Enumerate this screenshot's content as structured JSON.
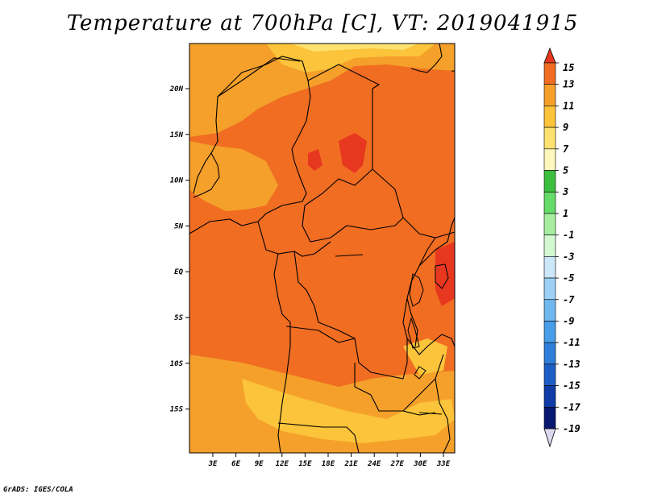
{
  "title": "Temperature at 700hPa [C], VT: 2019041915",
  "credit": "GrADS: IGES/COLA",
  "map": {
    "lon_labels": [
      "3E",
      "6E",
      "9E",
      "12E",
      "15E",
      "18E",
      "21E",
      "24E",
      "27E",
      "30E",
      "33E"
    ],
    "lat_labels": [
      "20N",
      "15N",
      "10N",
      "5N",
      "EQ",
      "5S",
      "10S",
      "15S"
    ]
  },
  "colorbar": {
    "levels": [
      "15",
      "13",
      "11",
      "9",
      "7",
      "5",
      "3",
      "1",
      "-1",
      "-3",
      "-5",
      "-7",
      "-9",
      "-11",
      "-13",
      "-15",
      "-17",
      "-19"
    ],
    "colors": [
      "#e7371f",
      "#f06d22",
      "#f5a02a",
      "#fbc43a",
      "#fde270",
      "#fef6bc",
      "#3cbf3e",
      "#66db68",
      "#a6eda0",
      "#d4f8d0",
      "#cce6fa",
      "#9cd0f5",
      "#70b8f0",
      "#489ee8",
      "#2f7ed9",
      "#1d5ec6",
      "#0f3ca6",
      "#081870",
      "#dcd8f0"
    ]
  },
  "colors": {
    "field_11": "#f06d22",
    "field_9": "#f5a02a",
    "field_7": "#fbc43a",
    "field_5": "#fde270",
    "field_13": "#e7371f",
    "border": "#000000"
  }
}
